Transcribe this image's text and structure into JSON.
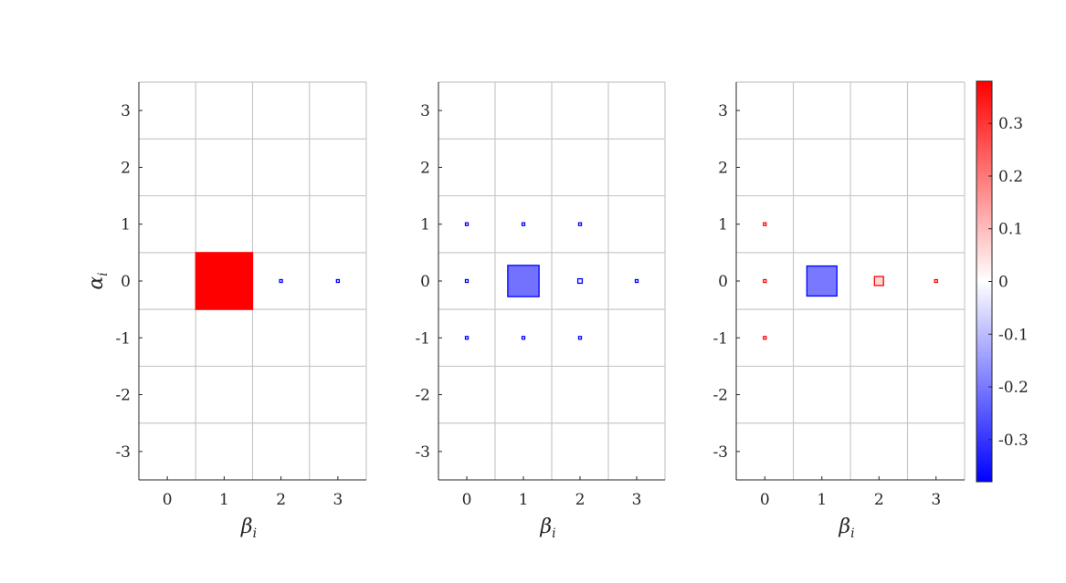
{
  "colorbar": {
    "range": [
      -0.38,
      0.38
    ],
    "ticks": [
      0.3,
      0.2,
      0.1,
      0,
      -0.1,
      -0.2,
      -0.3
    ],
    "tick_labels": [
      "0.3",
      "0.2",
      "0.1",
      "0",
      "-0.1",
      "-0.2",
      "-0.3"
    ],
    "colors": {
      "negative": "#0000ff",
      "zero": "#ffffff",
      "positive": "#ff0000"
    }
  },
  "chart_data": [
    {
      "type": "heatmap",
      "xlabel": "β",
      "xlabel_sub": "i",
      "ylabel": "α",
      "ylabel_sub": "i",
      "x_ticks": [
        0,
        1,
        2,
        3
      ],
      "x_tick_labels": [
        "0",
        "1",
        "2",
        "3"
      ],
      "y_ticks": [
        3,
        2,
        1,
        0,
        -1,
        -2,
        -3
      ],
      "y_tick_labels": [
        "3",
        "2",
        "1",
        "0",
        "-1",
        "-2",
        "-3"
      ],
      "xlim": [
        -0.5,
        3.5
      ],
      "ylim": [
        -3.5,
        3.5
      ],
      "grid": true,
      "cells": [
        {
          "x": 1,
          "y": 0,
          "value": 0.38
        },
        {
          "x": 2,
          "y": 0,
          "value": -0.01
        },
        {
          "x": 3,
          "y": 0,
          "value": -0.001
        }
      ]
    },
    {
      "type": "heatmap",
      "xlabel": "β",
      "xlabel_sub": "i",
      "ylabel": "",
      "ylabel_sub": "",
      "x_ticks": [
        0,
        1,
        2,
        3
      ],
      "x_tick_labels": [
        "0",
        "1",
        "2",
        "3"
      ],
      "y_ticks": [
        3,
        2,
        1,
        0,
        -1,
        -2,
        -3
      ],
      "y_tick_labels": [
        "3",
        "2",
        "1",
        "0",
        "-1",
        "-2",
        "-3"
      ],
      "xlim": [
        -0.5,
        3.5
      ],
      "ylim": [
        -3.5,
        3.5
      ],
      "grid": true,
      "cells": [
        {
          "x": 0,
          "y": 1,
          "value": -0.001
        },
        {
          "x": 1,
          "y": 1,
          "value": -0.001
        },
        {
          "x": 2,
          "y": 1,
          "value": -0.001
        },
        {
          "x": 0,
          "y": 0,
          "value": -0.001
        },
        {
          "x": 1,
          "y": 0,
          "value": -0.21
        },
        {
          "x": 2,
          "y": 0,
          "value": -0.03
        },
        {
          "x": 3,
          "y": 0,
          "value": -0.01
        },
        {
          "x": 0,
          "y": -1,
          "value": -0.001
        },
        {
          "x": 1,
          "y": -1,
          "value": -0.001
        },
        {
          "x": 2,
          "y": -1,
          "value": -0.001
        }
      ]
    },
    {
      "type": "heatmap",
      "xlabel": "β",
      "xlabel_sub": "i",
      "ylabel": "",
      "ylabel_sub": "",
      "x_ticks": [
        0,
        1,
        2,
        3
      ],
      "x_tick_labels": [
        "0",
        "1",
        "2",
        "3"
      ],
      "y_ticks": [
        3,
        2,
        1,
        0,
        -1,
        -2,
        -3
      ],
      "y_tick_labels": [
        "3",
        "2",
        "1",
        "0",
        "-1",
        "-2",
        "-3"
      ],
      "xlim": [
        -0.5,
        3.5
      ],
      "ylim": [
        -3.5,
        3.5
      ],
      "grid": true,
      "cells": [
        {
          "x": 0,
          "y": 1,
          "value": 0.002
        },
        {
          "x": 0,
          "y": 0,
          "value": 0.002
        },
        {
          "x": 0,
          "y": -1,
          "value": 0.002
        },
        {
          "x": 1,
          "y": 0,
          "value": -0.2
        },
        {
          "x": 2,
          "y": 0,
          "value": 0.06
        },
        {
          "x": 3,
          "y": 0,
          "value": 0.01
        }
      ]
    }
  ]
}
